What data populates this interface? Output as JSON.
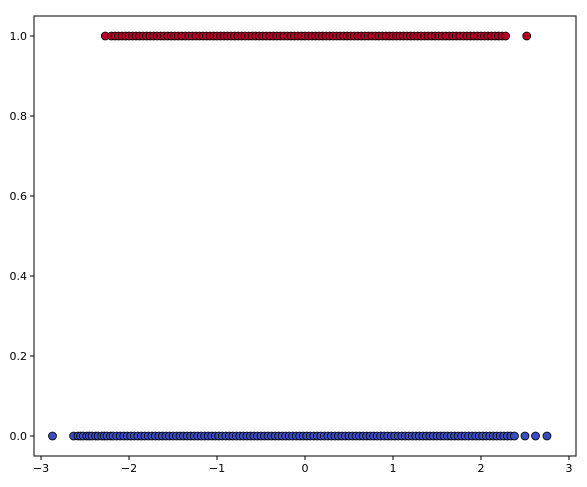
{
  "chart_data": {
    "type": "scatter",
    "title": "",
    "xlabel": "",
    "ylabel": "",
    "xlim": [
      -3.08,
      3.08
    ],
    "ylim": [
      -0.05,
      1.05
    ],
    "grid": false,
    "x_ticks": [
      -3,
      -2,
      -1,
      0,
      1,
      2,
      3
    ],
    "x_tick_labels": [
      "−3",
      "−2",
      "−1",
      "0",
      "1",
      "2",
      "3"
    ],
    "y_ticks": [
      0.0,
      0.2,
      0.4,
      0.6,
      0.8,
      1.0
    ],
    "y_tick_labels": [
      "0.0",
      "0.2",
      "0.4",
      "0.6",
      "0.8",
      "1.0"
    ],
    "marker_edge_color": "#000000",
    "series": [
      {
        "color": "#3b4cc0",
        "y_value": 0,
        "x": [
          -2.87,
          -2.63,
          -2.58,
          -2.55,
          -2.52,
          -2.48,
          -2.45,
          -2.42,
          -2.38,
          -2.35,
          -2.31,
          -2.28,
          -2.25,
          -2.21,
          -2.18,
          -2.14,
          -2.1,
          -2.06,
          -2.02,
          -1.98,
          -1.94,
          -1.9,
          -1.86,
          -1.82,
          -1.78,
          -1.74,
          -1.7,
          -1.66,
          -1.62,
          -1.58,
          -1.54,
          -1.5,
          -1.46,
          -1.42,
          -1.38,
          -1.34,
          -1.3,
          -1.26,
          -1.22,
          -1.18,
          -1.14,
          -1.1,
          -1.06,
          -1.02,
          -0.98,
          -0.94,
          -0.9,
          -0.86,
          -0.82,
          -0.78,
          -0.74,
          -0.7,
          -0.66,
          -0.62,
          -0.58,
          -0.54,
          -0.5,
          -0.46,
          -0.42,
          -0.38,
          -0.34,
          -0.3,
          -0.26,
          -0.22,
          -0.18,
          -0.14,
          -0.1,
          -0.06,
          -0.02,
          0.02,
          0.06,
          0.1,
          0.14,
          0.18,
          0.22,
          0.26,
          0.3,
          0.34,
          0.38,
          0.42,
          0.46,
          0.5,
          0.54,
          0.58,
          0.62,
          0.66,
          0.7,
          0.74,
          0.78,
          0.82,
          0.86,
          0.9,
          0.94,
          0.98,
          1.02,
          1.06,
          1.1,
          1.14,
          1.18,
          1.22,
          1.26,
          1.3,
          1.34,
          1.38,
          1.42,
          1.46,
          1.5,
          1.54,
          1.58,
          1.62,
          1.66,
          1.7,
          1.74,
          1.78,
          1.82,
          1.86,
          1.9,
          1.94,
          1.98,
          2.02,
          2.06,
          2.1,
          2.14,
          2.18,
          2.22,
          2.26,
          2.3,
          2.34,
          2.38,
          2.5,
          2.62,
          2.75
        ]
      },
      {
        "color": "#b40426",
        "y_value": 1,
        "x": [
          -2.27,
          -2.2,
          -2.16,
          -2.12,
          -2.08,
          -2.04,
          -2.0,
          -1.96,
          -1.92,
          -1.88,
          -1.84,
          -1.8,
          -1.76,
          -1.72,
          -1.68,
          -1.64,
          -1.6,
          -1.56,
          -1.52,
          -1.48,
          -1.44,
          -1.4,
          -1.36,
          -1.32,
          -1.28,
          -1.24,
          -1.2,
          -1.16,
          -1.12,
          -1.08,
          -1.04,
          -1.0,
          -0.96,
          -0.92,
          -0.88,
          -0.84,
          -0.8,
          -0.76,
          -0.72,
          -0.68,
          -0.64,
          -0.6,
          -0.56,
          -0.52,
          -0.48,
          -0.44,
          -0.4,
          -0.36,
          -0.32,
          -0.28,
          -0.24,
          -0.2,
          -0.16,
          -0.12,
          -0.08,
          -0.04,
          0.0,
          0.04,
          0.08,
          0.12,
          0.16,
          0.2,
          0.24,
          0.28,
          0.32,
          0.36,
          0.4,
          0.44,
          0.48,
          0.52,
          0.56,
          0.6,
          0.64,
          0.68,
          0.72,
          0.76,
          0.8,
          0.84,
          0.88,
          0.92,
          0.96,
          1.0,
          1.04,
          1.08,
          1.12,
          1.16,
          1.2,
          1.24,
          1.28,
          1.32,
          1.36,
          1.4,
          1.44,
          1.48,
          1.52,
          1.56,
          1.6,
          1.64,
          1.68,
          1.72,
          1.76,
          1.8,
          1.84,
          1.88,
          1.92,
          1.96,
          2.0,
          2.04,
          2.08,
          2.12,
          2.16,
          2.2,
          2.24,
          2.28,
          2.52
        ]
      }
    ]
  }
}
